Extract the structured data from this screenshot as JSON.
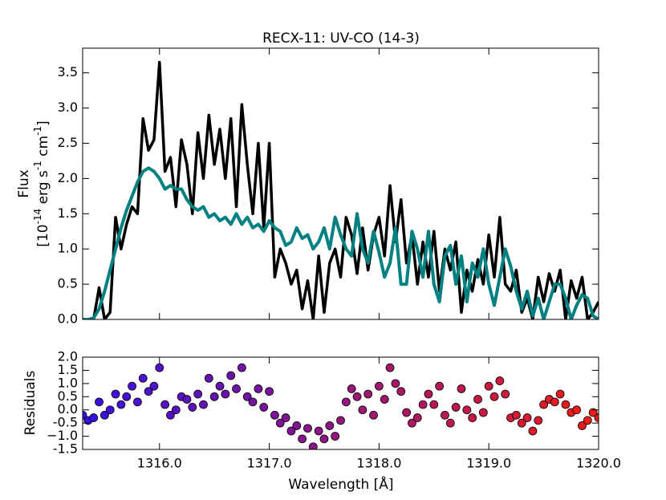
{
  "chart_data": [
    {
      "type": "line",
      "title": "RECX-11: UV-CO (14-3)",
      "ylabel": "Flux",
      "ylabel_units": [
        "[10",
        "-14",
        " erg s",
        "-1",
        " cm",
        "-1",
        "]"
      ],
      "x": [
        1315.3,
        1315.35,
        1315.4,
        1315.45,
        1315.5,
        1315.55,
        1315.6,
        1315.65,
        1315.7,
        1315.75,
        1315.8,
        1315.85,
        1315.9,
        1315.95,
        1316.0,
        1316.05,
        1316.1,
        1316.15,
        1316.2,
        1316.25,
        1316.3,
        1316.35,
        1316.4,
        1316.45,
        1316.5,
        1316.55,
        1316.6,
        1316.65,
        1316.7,
        1316.75,
        1316.8,
        1316.85,
        1316.9,
        1316.95,
        1317.0,
        1317.05,
        1317.1,
        1317.15,
        1317.2,
        1317.25,
        1317.3,
        1317.35,
        1317.4,
        1317.45,
        1317.5,
        1317.55,
        1317.6,
        1317.65,
        1317.7,
        1317.75,
        1317.8,
        1317.85,
        1317.9,
        1317.95,
        1318.0,
        1318.05,
        1318.1,
        1318.15,
        1318.2,
        1318.25,
        1318.3,
        1318.35,
        1318.4,
        1318.45,
        1318.5,
        1318.55,
        1318.6,
        1318.65,
        1318.7,
        1318.75,
        1318.8,
        1318.85,
        1318.9,
        1318.95,
        1319.0,
        1319.05,
        1319.1,
        1319.15,
        1319.2,
        1319.25,
        1319.3,
        1319.35,
        1319.4,
        1319.45,
        1319.5,
        1319.55,
        1319.6,
        1319.65,
        1319.7,
        1319.75,
        1319.8,
        1319.85,
        1319.9,
        1319.95,
        1320.0
      ],
      "series": [
        {
          "color": "#000000",
          "values": [
            0.0,
            0.0,
            0.0,
            0.45,
            0.0,
            0.1,
            1.45,
            1.0,
            1.35,
            1.6,
            1.5,
            2.85,
            2.4,
            2.55,
            3.65,
            2.1,
            2.3,
            1.6,
            2.55,
            2.2,
            1.5,
            2.65,
            2.0,
            2.9,
            2.2,
            2.7,
            2.0,
            2.85,
            1.6,
            3.05,
            2.2,
            1.5,
            2.5,
            1.3,
            2.5,
            0.6,
            1.0,
            0.8,
            0.5,
            0.7,
            0.15,
            0.55,
            0.0,
            0.9,
            0.1,
            0.8,
            1.0,
            0.6,
            1.45,
            1.2,
            0.65,
            1.3,
            0.7,
            1.2,
            1.45,
            0.9,
            1.9,
            1.1,
            1.7,
            0.8,
            1.2,
            0.5,
            1.1,
            0.6,
            1.25,
            0.4,
            1.0,
            0.7,
            1.1,
            0.1,
            0.7,
            0.4,
            0.85,
            0.5,
            1.2,
            0.6,
            1.45,
            0.5,
            0.4,
            0.7,
            0.1,
            0.3,
            0.0,
            0.6,
            0.25,
            0.65,
            0.4,
            0.7,
            0.0,
            0.55,
            0.3,
            0.6,
            0.0,
            0.1,
            0.25
          ]
        },
        {
          "color": "#008080",
          "values": [
            0.0,
            0.0,
            0.02,
            0.15,
            0.4,
            0.7,
            1.0,
            1.3,
            1.55,
            1.75,
            1.95,
            2.1,
            2.15,
            2.1,
            2.0,
            1.85,
            1.9,
            1.85,
            1.85,
            1.7,
            1.6,
            1.55,
            1.6,
            1.45,
            1.5,
            1.4,
            1.45,
            1.35,
            1.5,
            1.35,
            1.45,
            1.3,
            1.35,
            1.25,
            1.4,
            1.3,
            1.25,
            1.05,
            1.1,
            1.3,
            1.15,
            1.2,
            1.0,
            1.1,
            1.3,
            1.0,
            1.45,
            1.2,
            1.0,
            0.9,
            1.5,
            1.0,
            0.8,
            1.25,
            0.95,
            0.6,
            0.8,
            1.3,
            0.5,
            0.5,
            1.25,
            1.0,
            0.6,
            1.25,
            0.5,
            0.25,
            0.9,
            1.05,
            0.5,
            0.9,
            0.25,
            0.8,
            0.6,
            1.0,
            0.5,
            0.2,
            0.6,
            1.0,
            0.75,
            0.4,
            0.15,
            0.4,
            0.05,
            0.3,
            0.0,
            0.25,
            0.5,
            0.5,
            0.3,
            0.0,
            0.2,
            0.35,
            0.3,
            0.05,
            0.0
          ]
        }
      ],
      "xlim": [
        1315.3,
        1320.0
      ],
      "xticks": [
        1316,
        1317,
        1318,
        1319,
        1320
      ],
      "ylim": [
        0,
        3.85
      ],
      "yticks": [
        {
          "value": 0,
          "label": "0.0"
        },
        0.5,
        {
          "value": 1,
          "label": "1.0"
        },
        1.5,
        {
          "value": 2,
          "label": "2.0"
        },
        2.5,
        {
          "value": 3,
          "label": "3.0"
        },
        3.5
      ]
    },
    {
      "type": "scatter",
      "xlabel": "Wavelength [Å]",
      "ylabel": "Residuals",
      "cmap": [
        "#3510e6",
        "#f01c14"
      ],
      "x": [
        1315.3,
        1315.35,
        1315.4,
        1315.45,
        1315.5,
        1315.55,
        1315.6,
        1315.65,
        1315.7,
        1315.75,
        1315.8,
        1315.85,
        1315.9,
        1315.95,
        1316.0,
        1316.05,
        1316.1,
        1316.15,
        1316.2,
        1316.25,
        1316.3,
        1316.35,
        1316.4,
        1316.45,
        1316.5,
        1316.55,
        1316.6,
        1316.65,
        1316.7,
        1316.75,
        1316.8,
        1316.85,
        1316.9,
        1316.95,
        1317.0,
        1317.05,
        1317.1,
        1317.15,
        1317.2,
        1317.25,
        1317.3,
        1317.35,
        1317.4,
        1317.45,
        1317.5,
        1317.55,
        1317.6,
        1317.65,
        1317.7,
        1317.75,
        1317.8,
        1317.85,
        1317.9,
        1317.95,
        1318.0,
        1318.05,
        1318.1,
        1318.15,
        1318.2,
        1318.25,
        1318.3,
        1318.35,
        1318.4,
        1318.45,
        1318.5,
        1318.55,
        1318.6,
        1318.65,
        1318.7,
        1318.75,
        1318.8,
        1318.85,
        1318.9,
        1318.95,
        1319.0,
        1319.05,
        1319.1,
        1319.15,
        1319.2,
        1319.25,
        1319.3,
        1319.35,
        1319.4,
        1319.45,
        1319.5,
        1319.55,
        1319.6,
        1319.65,
        1319.7,
        1319.75,
        1319.8,
        1319.85,
        1319.9,
        1319.95,
        1320.0
      ],
      "values": [
        -0.2,
        -0.4,
        -0.3,
        0.3,
        -0.2,
        0.0,
        0.6,
        0.2,
        0.5,
        0.9,
        0.3,
        1.2,
        0.7,
        0.9,
        1.6,
        0.2,
        -0.2,
        0.0,
        0.5,
        0.4,
        0.1,
        0.6,
        0.2,
        1.2,
        0.5,
        0.9,
        0.6,
        1.3,
        0.8,
        1.6,
        0.5,
        0.3,
        0.8,
        0.1,
        0.7,
        -0.2,
        -0.5,
        -0.3,
        -0.8,
        -0.6,
        -1.1,
        -0.7,
        -1.4,
        -0.8,
        -1.1,
        -0.6,
        -1.0,
        -0.4,
        0.3,
        0.8,
        0.5,
        0.0,
        0.6,
        -0.2,
        0.9,
        0.4,
        1.6,
        1.0,
        0.7,
        -0.1,
        -0.5,
        -0.3,
        0.2,
        0.6,
        0.2,
        0.9,
        -0.2,
        -0.5,
        0.1,
        0.8,
        0.0,
        -0.3,
        0.4,
        -0.1,
        0.9,
        0.5,
        1.1,
        0.6,
        -0.3,
        -0.2,
        -0.5,
        -0.3,
        -0.8,
        -0.4,
        0.2,
        0.4,
        0.3,
        0.6,
        0.2,
        -0.1,
        0.0,
        -0.6,
        -0.4,
        -0.1,
        -0.3
      ],
      "xlim": [
        1315.3,
        1320.0
      ],
      "xticks": [
        {
          "value": 1316,
          "label": "1316.0"
        },
        {
          "value": 1317,
          "label": "1317.0"
        },
        {
          "value": 1318,
          "label": "1318.0"
        },
        {
          "value": 1319,
          "label": "1319.0"
        },
        {
          "value": 1320,
          "label": "1320.0"
        }
      ],
      "ylim": [
        -1.5,
        2.0
      ],
      "yticks": [
        -1.5,
        {
          "value": -1,
          "label": "−1.0"
        },
        -0.5,
        {
          "value": 0,
          "label": "0.0"
        },
        0.5,
        {
          "value": 1,
          "label": "1.0"
        },
        1.5,
        {
          "value": 2,
          "label": "2.0"
        }
      ]
    }
  ]
}
